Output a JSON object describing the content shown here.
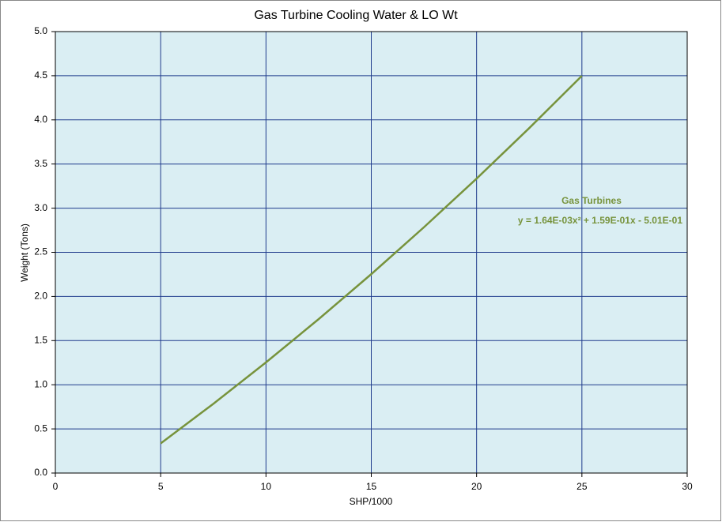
{
  "chart_data": {
    "type": "line",
    "title": "Gas Turbine Cooling Water & LO Wt",
    "x_label": "SHP/1000",
    "y_label": "Weight (Tons)",
    "x": [
      5,
      7.5,
      10,
      12.5,
      15,
      17.5,
      20,
      22.5,
      25
    ],
    "series": [
      {
        "name": "Gas Turbines",
        "color": "#77933c",
        "values": [
          0.335,
          0.784,
          1.253,
          1.743,
          2.253,
          2.784,
          3.335,
          3.907,
          4.499
        ]
      }
    ],
    "annotation": "y = 1.64E-03x² + 1.59E-01x - 5.01E-01",
    "xlim": [
      0,
      30
    ],
    "xticks": [
      0,
      5,
      10,
      15,
      20,
      25,
      30
    ],
    "ylim": [
      0,
      5
    ],
    "yticks": [
      {
        "value": 0,
        "label": "0.0"
      },
      0.5,
      {
        "value": 1,
        "label": "1.0"
      },
      1.5,
      {
        "value": 2,
        "label": "2.0"
      },
      2.5,
      {
        "value": 3,
        "label": "3.0"
      },
      3.5,
      {
        "value": 4,
        "label": "4.0"
      },
      4.5,
      {
        "value": 5,
        "label": "5.0"
      }
    ],
    "grid": true,
    "plot_background": "#daeef3",
    "grid_color": "#1f3b8c"
  }
}
